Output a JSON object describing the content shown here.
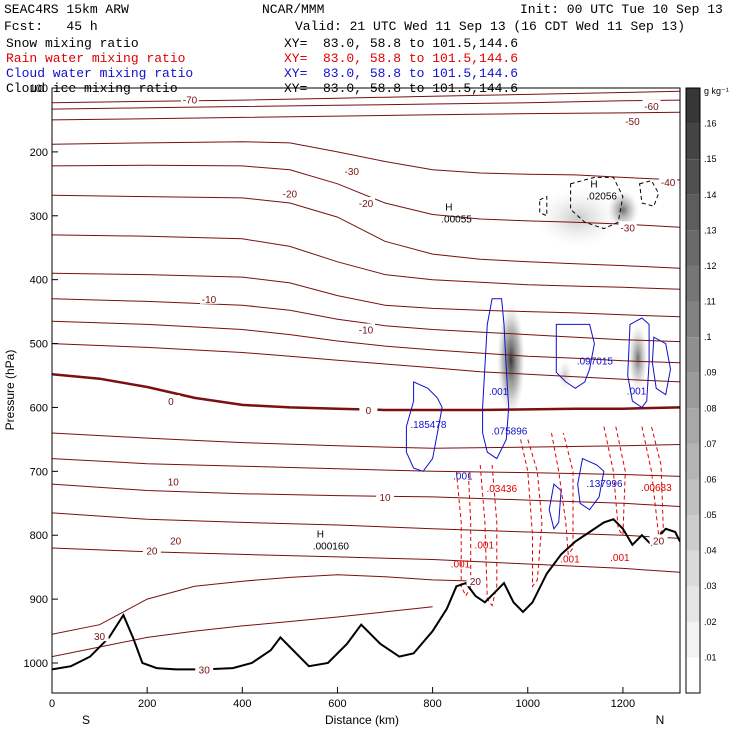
{
  "header": {
    "model": "SEAC4RS 15km ARW",
    "org": "NCAR/MMM",
    "init": "Init: 00 UTC Tue 10 Sep 13",
    "fcst": "Fcst:   45 h",
    "valid": "Valid: 21 UTC Wed 11 Sep 13 (16 CDT Wed 11 Sep 13)",
    "fields": [
      {
        "name": "Snow mixing ratio",
        "xy": "XY=  83.0, 58.8 to 101.5,144.6",
        "color": "#000000"
      },
      {
        "name": "Rain water mixing ratio",
        "xy": "XY=  83.0, 58.8 to 101.5,144.6",
        "color": "#e00000"
      },
      {
        "name": "Cloud water mixing ratio",
        "xy": "XY=  83.0, 58.8 to 101.5,144.6",
        "color": "#1010cc"
      },
      {
        "name": "Cloud ice mixing ratio",
        "xy": "XY=  83.0, 58.8 to 101.5,144.6",
        "color": "#000000"
      }
    ]
  },
  "chart_data": {
    "type": "cross-section",
    "xlabel": "Distance (km)",
    "ylabel": "Pressure (hPa)",
    "xlim": [
      0,
      1320
    ],
    "ylim": [
      1050,
      100
    ],
    "x_ticks": [
      "0",
      "200",
      "400",
      "600",
      "800",
      "1000",
      "1200"
    ],
    "y_ticks": [
      "1000",
      "900",
      "800",
      "700",
      "600",
      "500",
      "400",
      "300",
      "200",
      "100"
    ],
    "x_end_labels": {
      "left": "S",
      "right": "N"
    },
    "colorbar": {
      "unit": "g kg⁻¹",
      "ticks": [
        ".01",
        ".02",
        ".03",
        ".04",
        ".05",
        ".06",
        ".07",
        ".08",
        ".09",
        ".1",
        ".11",
        ".12",
        ".13",
        ".14",
        ".15",
        ".16"
      ],
      "range": [
        0,
        0.17
      ]
    },
    "temperature_isotherms": [
      {
        "t": -70,
        "points": [
          [
            0,
            123
          ],
          [
            200,
            121
          ],
          [
            400,
            119
          ],
          [
            600,
            116
          ],
          [
            800,
            113
          ],
          [
            1000,
            110
          ],
          [
            1200,
            107
          ],
          [
            1320,
            105
          ]
        ]
      },
      {
        "t": -60,
        "points": [
          [
            0,
            133
          ],
          [
            200,
            131
          ],
          [
            400,
            129
          ],
          [
            600,
            127
          ],
          [
            800,
            125
          ],
          [
            1000,
            123
          ],
          [
            1200,
            120
          ],
          [
            1320,
            119
          ]
        ]
      },
      {
        "t": -50,
        "points": [
          [
            0,
            150
          ],
          [
            200,
            148
          ],
          [
            400,
            146
          ],
          [
            600,
            144
          ],
          [
            800,
            142
          ],
          [
            1000,
            140
          ],
          [
            1200,
            139
          ],
          [
            1320,
            138
          ]
        ]
      },
      {
        "t": -40,
        "points": [
          [
            0,
            188
          ],
          [
            200,
            186
          ],
          [
            400,
            184
          ],
          [
            500,
            186
          ],
          [
            600,
            200
          ],
          [
            700,
            215
          ],
          [
            800,
            228
          ],
          [
            900,
            233
          ],
          [
            1000,
            235
          ],
          [
            1100,
            236
          ],
          [
            1200,
            240
          ],
          [
            1320,
            244
          ]
        ]
      },
      {
        "t": -30,
        "points": [
          [
            0,
            222
          ],
          [
            200,
            221
          ],
          [
            400,
            222
          ],
          [
            500,
            228
          ],
          [
            600,
            250
          ],
          [
            700,
            280
          ],
          [
            800,
            298
          ],
          [
            900,
            305
          ],
          [
            1000,
            308
          ],
          [
            1100,
            310
          ],
          [
            1200,
            313
          ],
          [
            1320,
            318
          ]
        ]
      },
      {
        "t": -20,
        "points": [
          [
            0,
            268
          ],
          [
            200,
            270
          ],
          [
            400,
            272
          ],
          [
            500,
            280
          ],
          [
            600,
            302
          ],
          [
            700,
            340
          ],
          [
            800,
            360
          ],
          [
            900,
            368
          ],
          [
            1000,
            372
          ],
          [
            1100,
            375
          ],
          [
            1200,
            378
          ],
          [
            1320,
            382
          ]
        ]
      },
      {
        "t": -20,
        "points": [
          [
            0,
            330
          ],
          [
            200,
            332
          ],
          [
            400,
            336
          ],
          [
            500,
            348
          ],
          [
            600,
            372
          ],
          [
            700,
            392
          ],
          [
            800,
            400
          ],
          [
            900,
            404
          ],
          [
            1000,
            408
          ],
          [
            1100,
            410
          ],
          [
            1200,
            412
          ],
          [
            1320,
            415
          ]
        ]
      },
      {
        "t": -20,
        "points": [
          [
            0,
            390
          ],
          [
            200,
            392
          ],
          [
            400,
            396
          ],
          [
            500,
            405
          ],
          [
            600,
            425
          ],
          [
            700,
            440
          ],
          [
            800,
            445
          ],
          [
            900,
            448
          ],
          [
            1000,
            450
          ],
          [
            1100,
            452
          ],
          [
            1200,
            455
          ],
          [
            1320,
            458
          ]
        ]
      },
      {
        "t": -10,
        "points": [
          [
            0,
            430
          ],
          [
            200,
            434
          ],
          [
            400,
            440
          ],
          [
            500,
            448
          ],
          [
            600,
            462
          ],
          [
            700,
            472
          ],
          [
            800,
            478
          ],
          [
            900,
            482
          ],
          [
            1000,
            486
          ],
          [
            1100,
            490
          ],
          [
            1200,
            494
          ],
          [
            1320,
            497
          ]
        ]
      },
      {
        "t": -10,
        "points": [
          [
            0,
            465
          ],
          [
            200,
            470
          ],
          [
            400,
            478
          ],
          [
            500,
            486
          ],
          [
            600,
            496
          ],
          [
            700,
            504
          ],
          [
            800,
            510
          ],
          [
            900,
            515
          ],
          [
            1000,
            520
          ],
          [
            1100,
            523
          ],
          [
            1200,
            527
          ],
          [
            1320,
            530
          ]
        ]
      },
      {
        "t": -10,
        "points": [
          [
            0,
            500
          ],
          [
            200,
            506
          ],
          [
            400,
            514
          ],
          [
            500,
            520
          ],
          [
            600,
            526
          ],
          [
            700,
            532
          ],
          [
            800,
            538
          ],
          [
            900,
            544
          ],
          [
            1000,
            548
          ],
          [
            1100,
            552
          ],
          [
            1200,
            556
          ],
          [
            1320,
            560
          ]
        ]
      },
      {
        "t": 0,
        "bold": true,
        "points": [
          [
            0,
            548
          ],
          [
            100,
            555
          ],
          [
            200,
            568
          ],
          [
            300,
            585
          ],
          [
            400,
            596
          ],
          [
            500,
            600
          ],
          [
            600,
            602
          ],
          [
            700,
            604
          ],
          [
            800,
            604
          ],
          [
            900,
            604
          ],
          [
            1000,
            603
          ],
          [
            1100,
            602
          ],
          [
            1200,
            602
          ],
          [
            1320,
            600
          ]
        ]
      },
      {
        "t": 10,
        "points": [
          [
            0,
            640
          ],
          [
            200,
            648
          ],
          [
            400,
            655
          ],
          [
            600,
            660
          ],
          [
            800,
            664
          ],
          [
            1000,
            662
          ],
          [
            1200,
            660
          ],
          [
            1320,
            658
          ]
        ]
      },
      {
        "t": 10,
        "points": [
          [
            0,
            680
          ],
          [
            200,
            688
          ],
          [
            400,
            692
          ],
          [
            600,
            696
          ],
          [
            800,
            700
          ],
          [
            1000,
            702
          ],
          [
            1200,
            705
          ],
          [
            1320,
            708
          ]
        ]
      },
      {
        "t": 10,
        "points": [
          [
            0,
            720
          ],
          [
            200,
            730
          ],
          [
            400,
            735
          ],
          [
            600,
            738
          ],
          [
            800,
            740
          ],
          [
            1000,
            745
          ],
          [
            1200,
            750
          ],
          [
            1320,
            755
          ]
        ]
      },
      {
        "t": 20,
        "points": [
          [
            0,
            765
          ],
          [
            200,
            775
          ],
          [
            400,
            780
          ],
          [
            600,
            784
          ],
          [
            800,
            790
          ],
          [
            1000,
            795
          ],
          [
            1200,
            800
          ],
          [
            1320,
            805
          ]
        ]
      },
      {
        "t": 20,
        "points": [
          [
            0,
            820
          ],
          [
            200,
            826
          ],
          [
            400,
            830
          ],
          [
            600,
            834
          ],
          [
            800,
            838
          ],
          [
            1000,
            845
          ],
          [
            1200,
            852
          ],
          [
            1320,
            858
          ]
        ]
      },
      {
        "t": 30,
        "points": [
          [
            0,
            955
          ],
          [
            100,
            940
          ],
          [
            200,
            900
          ],
          [
            300,
            880
          ],
          [
            400,
            872
          ],
          [
            500,
            866
          ],
          [
            600,
            862
          ],
          [
            700,
            865
          ],
          [
            800,
            870
          ],
          [
            900,
            872
          ]
        ]
      },
      {
        "t": 30,
        "points": [
          [
            0,
            990
          ],
          [
            100,
            975
          ],
          [
            200,
            960
          ],
          [
            300,
            950
          ],
          [
            400,
            942
          ],
          [
            500,
            935
          ],
          [
            600,
            928
          ],
          [
            700,
            920
          ],
          [
            800,
            912
          ]
        ]
      }
    ],
    "isotherm_labels": [
      {
        "x": 290,
        "p": 118,
        "t": "-70"
      },
      {
        "x": 1260,
        "p": 128,
        "t": "-60"
      },
      {
        "x": 1220,
        "p": 152,
        "t": "-50"
      },
      {
        "x": 1295,
        "p": 247,
        "t": "-40"
      },
      {
        "x": 630,
        "p": 230,
        "t": "-30"
      },
      {
        "x": 1210,
        "p": 318,
        "t": "-30"
      },
      {
        "x": 500,
        "p": 265,
        "t": "-20"
      },
      {
        "x": 660,
        "p": 280,
        "t": "-20"
      },
      {
        "x": 330,
        "p": 430,
        "t": "-10"
      },
      {
        "x": 660,
        "p": 478,
        "t": "-10"
      },
      {
        "x": 250,
        "p": 590,
        "t": "0"
      },
      {
        "x": 665,
        "p": 604,
        "t": "0"
      },
      {
        "x": 255,
        "p": 716,
        "t": "10"
      },
      {
        "x": 700,
        "p": 740,
        "t": "10"
      },
      {
        "x": 210,
        "p": 824,
        "t": "20"
      },
      {
        "x": 260,
        "p": 808,
        "t": "20"
      },
      {
        "x": 890,
        "p": 872,
        "t": "20"
      },
      {
        "x": 1275,
        "p": 808,
        "t": "20"
      },
      {
        "x": 100,
        "p": 958,
        "t": "30"
      },
      {
        "x": 320,
        "p": 1010,
        "t": "30"
      }
    ],
    "terrain": [
      [
        0,
        1010
      ],
      [
        40,
        1005
      ],
      [
        80,
        990
      ],
      [
        120,
        960
      ],
      [
        150,
        925
      ],
      [
        170,
        960
      ],
      [
        190,
        1000
      ],
      [
        220,
        1008
      ],
      [
        260,
        1010
      ],
      [
        320,
        1010
      ],
      [
        380,
        1008
      ],
      [
        420,
        1000
      ],
      [
        460,
        980
      ],
      [
        480,
        960
      ],
      [
        500,
        975
      ],
      [
        540,
        1005
      ],
      [
        580,
        1000
      ],
      [
        620,
        970
      ],
      [
        650,
        940
      ],
      [
        690,
        970
      ],
      [
        730,
        990
      ],
      [
        760,
        985
      ],
      [
        800,
        950
      ],
      [
        830,
        915
      ],
      [
        850,
        880
      ],
      [
        870,
        875
      ],
      [
        890,
        895
      ],
      [
        910,
        905
      ],
      [
        930,
        890
      ],
      [
        950,
        875
      ],
      [
        970,
        905
      ],
      [
        990,
        920
      ],
      [
        1010,
        905
      ],
      [
        1040,
        860
      ],
      [
        1070,
        830
      ],
      [
        1100,
        810
      ],
      [
        1130,
        795
      ],
      [
        1160,
        780
      ],
      [
        1180,
        775
      ],
      [
        1200,
        790
      ],
      [
        1220,
        815
      ],
      [
        1240,
        800
      ],
      [
        1260,
        815
      ],
      [
        1290,
        790
      ],
      [
        1310,
        795
      ],
      [
        1320,
        810
      ]
    ],
    "snow_maxima": [
      {
        "x": 1140,
        "p": 262,
        "label": ".02056"
      },
      {
        "x": 835,
        "p": 298,
        "label": ".00055"
      },
      {
        "x": 565,
        "p": 810,
        "label": ".000160"
      }
    ],
    "cloud_water_labels": [
      {
        "x": 770,
        "p": 620,
        "label": ".185478"
      },
      {
        "x": 940,
        "p": 630,
        "label": ".075896"
      },
      {
        "x": 935,
        "p": 568,
        "label": ".001"
      },
      {
        "x": 1120,
        "p": 520,
        "label": ".097015"
      },
      {
        "x": 1225,
        "p": 567,
        "label": ".001"
      },
      {
        "x": 860,
        "p": 700,
        "label": ".001"
      },
      {
        "x": 1140,
        "p": 712,
        "label": ".137996"
      }
    ],
    "rain_labels": [
      {
        "x": 930,
        "p": 720,
        "label": ".03436"
      },
      {
        "x": 905,
        "p": 808,
        "label": ".001"
      },
      {
        "x": 855,
        "p": 838,
        "label": ".001"
      },
      {
        "x": 1085,
        "p": 830,
        "label": ".001"
      },
      {
        "x": 1190,
        "p": 828,
        "label": ".001"
      },
      {
        "x": 1255,
        "p": 718,
        "label": ".00683"
      }
    ]
  }
}
